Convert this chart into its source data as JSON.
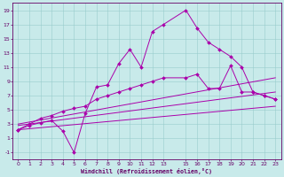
{
  "bg_color": "#c8eaea",
  "line_color": "#aa00aa",
  "grid_color": "#99cccc",
  "xlabel": "Windchill (Refroidissement éolien,°C)",
  "xlabel_color": "#660066",
  "tick_color": "#660066",
  "xlim": [
    -0.5,
    23.5
  ],
  "ylim": [
    -2.0,
    20.0
  ],
  "xticks": [
    0,
    1,
    2,
    3,
    4,
    5,
    6,
    7,
    8,
    9,
    10,
    11,
    12,
    13,
    15,
    16,
    17,
    18,
    19,
    20,
    21,
    22,
    23
  ],
  "yticks": [
    -1,
    1,
    3,
    5,
    7,
    9,
    11,
    13,
    15,
    17,
    19
  ],
  "line1_x": [
    0,
    1,
    2,
    3,
    4,
    5,
    6,
    7,
    8,
    9,
    10,
    11,
    12,
    13,
    15,
    16,
    17,
    18,
    19,
    20,
    21,
    22,
    23
  ],
  "line1_y": [
    2.2,
    2.8,
    3.2,
    3.5,
    2.0,
    -1.0,
    4.5,
    8.2,
    8.5,
    11.5,
    13.5,
    11.0,
    16.0,
    17.0,
    19.0,
    16.5,
    14.5,
    13.5,
    12.5,
    11.0,
    7.5,
    7.0,
    6.5
  ],
  "line2_x": [
    0,
    1,
    2,
    3,
    4,
    5,
    6,
    7,
    8,
    9,
    10,
    11,
    12,
    13,
    15,
    16,
    17,
    18,
    19,
    20,
    21,
    22,
    23
  ],
  "line2_y": [
    2.2,
    3.0,
    3.8,
    4.2,
    4.8,
    5.2,
    5.5,
    6.5,
    7.0,
    7.5,
    8.0,
    8.5,
    9.0,
    9.5,
    9.5,
    10.0,
    8.0,
    8.0,
    11.2,
    7.5,
    7.5,
    7.0,
    6.5
  ],
  "line3_x": [
    0,
    23
  ],
  "line3_y": [
    2.2,
    5.5
  ],
  "line4_x": [
    0,
    23
  ],
  "line4_y": [
    2.8,
    7.5
  ],
  "line5_x": [
    0,
    23
  ],
  "line5_y": [
    3.0,
    9.5
  ]
}
